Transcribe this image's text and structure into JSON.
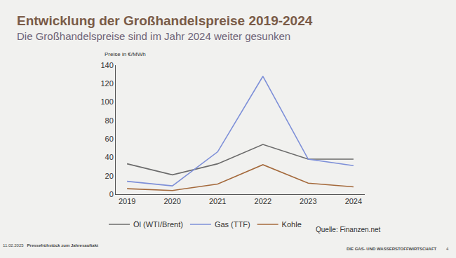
{
  "chart_data": {
    "type": "line",
    "title": "Entwicklung der Großhandelspreise 2019-2024",
    "subtitle": "Die Großhandelspreise sind im Jahr 2024 weiter gesunken",
    "y_label": "Preise in €/MWh",
    "source": "Quelle: Finanzen.net",
    "footer_left": "11.02.2025",
    "footer_event": "Pressefrühstück zum Jahresauftakt",
    "footer_right": "DIE GAS- UND WASSERSTOFFWIRTSCHAFT",
    "page_number": "4",
    "categories": [
      "2019",
      "2020",
      "2021",
      "2022",
      "2023",
      "2024"
    ],
    "series": [
      {
        "name": "Öl (WTI/Brent)",
        "color": "#6b6b6b",
        "values": [
          33,
          21,
          33,
          54,
          38,
          38
        ]
      },
      {
        "name": "Gas (TTF)",
        "color": "#7d8fd8",
        "values": [
          14,
          9,
          46,
          128,
          38,
          31
        ]
      },
      {
        "name": "Kohle",
        "color": "#a4693b",
        "values": [
          6,
          4,
          11,
          32,
          12,
          8
        ]
      }
    ],
    "ylim": [
      0,
      140
    ],
    "yticks": [
      0,
      20,
      40,
      60,
      80,
      100,
      120,
      140
    ],
    "grid": false,
    "legend": "bottom"
  }
}
